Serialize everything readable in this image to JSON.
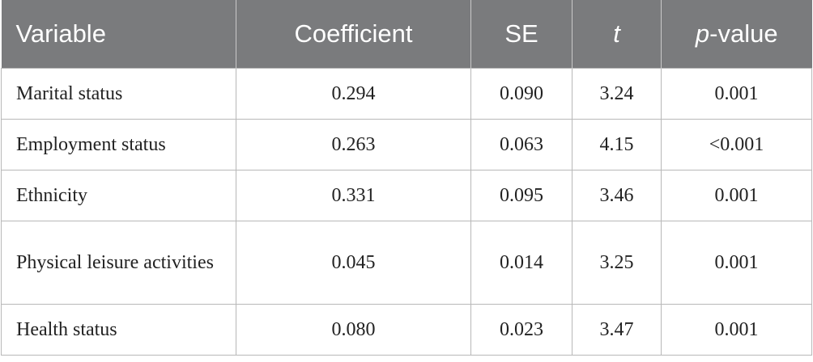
{
  "header": {
    "variable": "Variable",
    "coefficient": "Coefficient",
    "se": "SE",
    "t": "t",
    "p_italic": "p",
    "p_rest": "-value"
  },
  "rows": [
    {
      "variable": "Marital status",
      "coefficient": "0.294",
      "se": "0.090",
      "t": "3.24",
      "p": "0.001"
    },
    {
      "variable": "Employment status",
      "coefficient": "0.263",
      "se": "0.063",
      "t": "4.15",
      "p": "<0.001"
    },
    {
      "variable": "Ethnicity",
      "coefficient": "0.331",
      "se": "0.095",
      "t": "3.46",
      "p": "0.001"
    },
    {
      "variable": "Physical leisure activities",
      "coefficient": "0.045",
      "se": "0.014",
      "t": "3.25",
      "p": "0.001"
    },
    {
      "variable": "Health status",
      "coefficient": "0.080",
      "se": "0.023",
      "t": "3.47",
      "p": "0.001"
    }
  ],
  "colors": {
    "header_bg": "#7a7b7d",
    "header_text": "#ffffff",
    "grid": "#b8b8b8"
  }
}
